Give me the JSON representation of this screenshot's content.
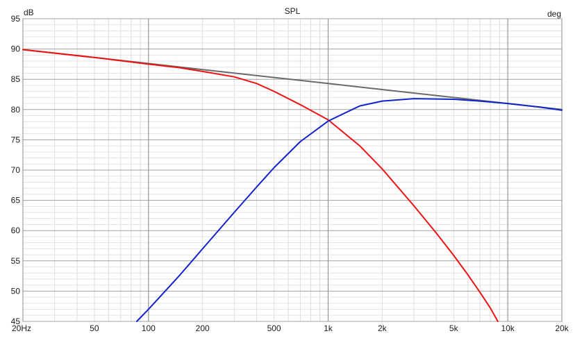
{
  "chart_data": {
    "type": "line",
    "title": "SPL",
    "ylabel": "dB",
    "y2label": "deg",
    "xscale": "log",
    "xlim": [
      20,
      20000
    ],
    "ylim": [
      45,
      95
    ],
    "grid": true,
    "x_major": [
      20,
      100,
      1000,
      10000,
      20000
    ],
    "x_ticks": [
      {
        "value": 20,
        "label": "20Hz"
      },
      {
        "value": 50,
        "label": "50"
      },
      {
        "value": 100,
        "label": "100"
      },
      {
        "value": 200,
        "label": "200"
      },
      {
        "value": 500,
        "label": "500"
      },
      {
        "value": 1000,
        "label": "1k"
      },
      {
        "value": 2000,
        "label": "2k"
      },
      {
        "value": 5000,
        "label": "5k"
      },
      {
        "value": 10000,
        "label": "10k"
      },
      {
        "value": 20000,
        "label": "20k"
      }
    ],
    "y_ticks": [
      95,
      90,
      85,
      80,
      75,
      70,
      65,
      60,
      55,
      50,
      45
    ],
    "series": [
      {
        "color": "#6a6a6a",
        "points": [
          [
            20,
            89.9
          ],
          [
            50,
            88.6
          ],
          [
            100,
            87.6
          ],
          [
            200,
            86.6
          ],
          [
            500,
            85.3
          ],
          [
            1000,
            84.3
          ],
          [
            2000,
            83.3
          ],
          [
            5000,
            82.0
          ],
          [
            10000,
            81.0
          ],
          [
            20000,
            80.0
          ]
        ]
      },
      {
        "color": "#ee1111",
        "points": [
          [
            20,
            89.9
          ],
          [
            50,
            88.6
          ],
          [
            100,
            87.5
          ],
          [
            150,
            86.9
          ],
          [
            200,
            86.3
          ],
          [
            300,
            85.4
          ],
          [
            400,
            84.3
          ],
          [
            500,
            83.0
          ],
          [
            700,
            80.8
          ],
          [
            1000,
            78.3
          ],
          [
            1500,
            74.0
          ],
          [
            2000,
            70.2
          ],
          [
            3000,
            64.1
          ],
          [
            4000,
            59.6
          ],
          [
            5000,
            55.9
          ],
          [
            6000,
            52.7
          ],
          [
            7000,
            49.8
          ],
          [
            8000,
            47.2
          ],
          [
            8800,
            45.0
          ]
        ]
      },
      {
        "color": "#1122cc",
        "points": [
          [
            86,
            45.0
          ],
          [
            100,
            47.0
          ],
          [
            150,
            52.7
          ],
          [
            200,
            57.0
          ],
          [
            300,
            63.0
          ],
          [
            400,
            67.2
          ],
          [
            500,
            70.4
          ],
          [
            700,
            74.7
          ],
          [
            1000,
            78.1
          ],
          [
            1500,
            80.6
          ],
          [
            2000,
            81.4
          ],
          [
            3000,
            81.8
          ],
          [
            5000,
            81.7
          ],
          [
            7000,
            81.4
          ],
          [
            10000,
            81.0
          ],
          [
            15000,
            80.4
          ],
          [
            20000,
            79.9
          ]
        ]
      }
    ]
  }
}
